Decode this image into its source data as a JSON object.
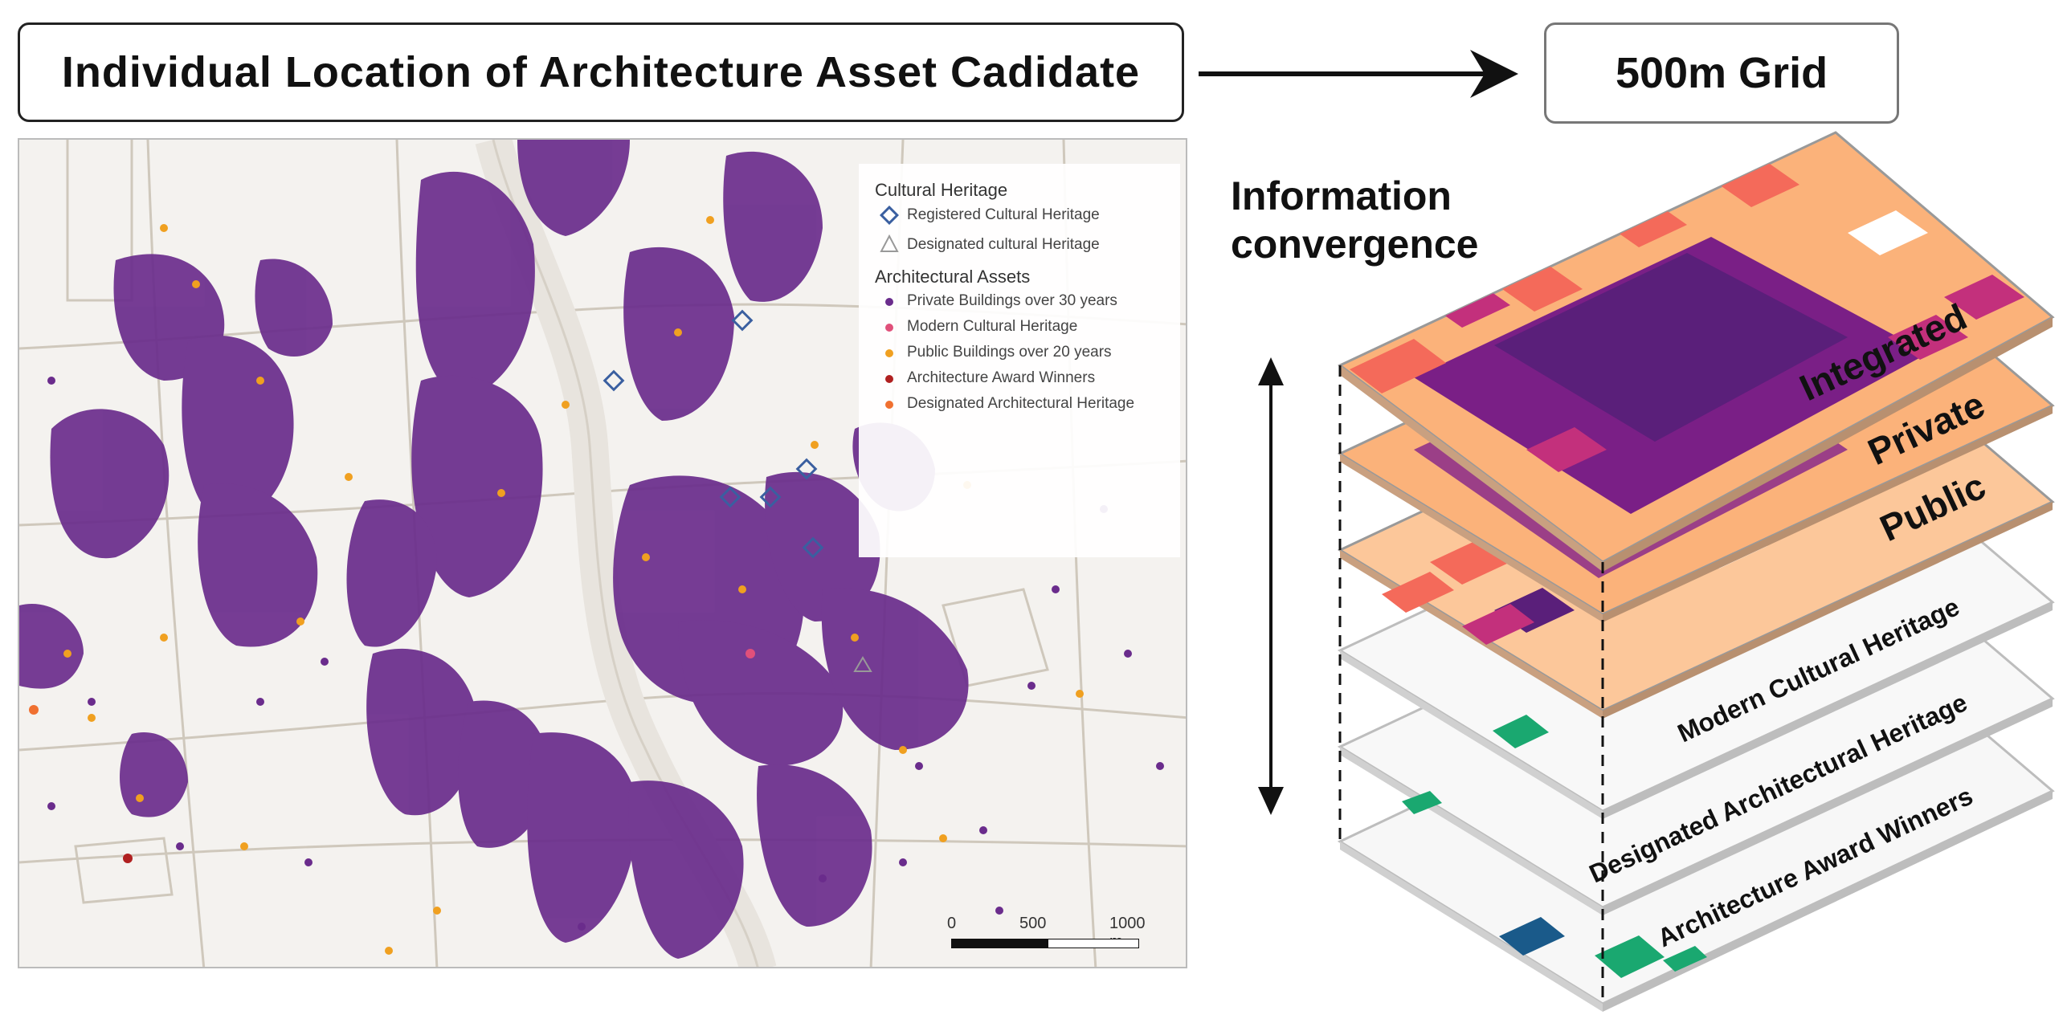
{
  "header": {
    "title": "Individual Location of Architecture Asset Cadidate",
    "grid_label": "500m Grid"
  },
  "legend": {
    "cultural_heritage_title": "Cultural Heritage",
    "registered": "Registered Cultural Heritage",
    "designated": "Designated cultural Heritage",
    "architectural_assets_title": "Architectural Assets",
    "private": "Private Buildings over 30 years",
    "modern": "Modern Cultural Heritage",
    "public": "Public Buildings over 20 years",
    "award": "Architecture Award Winners",
    "designated_arch": "Designated Architectural Heritage"
  },
  "scale_bar": {
    "t0": "0",
    "t1": "500",
    "t2": "1000 m"
  },
  "convergence_label": "Information convergence",
  "layers": [
    {
      "label": "Integrated"
    },
    {
      "label": "Private"
    },
    {
      "label": "Public"
    },
    {
      "label": "Modern Cultural Heritage"
    },
    {
      "label": "Designated Architectural Heritage"
    },
    {
      "label": "Architecture Award Winners"
    }
  ],
  "colors": {
    "private": "#6a2c8c",
    "modern": "#e0507a",
    "public": "#f0a020",
    "award": "#b02020",
    "designated_arch": "#f07030",
    "registered": "#3a5fa0",
    "grid_low": "#fbb27a",
    "grid_mid": "#f46a5a",
    "grid_high": "#c3307c",
    "grid_top": "#5a1f7a",
    "green": "#1aa870",
    "blue": "#1a5a8a"
  }
}
